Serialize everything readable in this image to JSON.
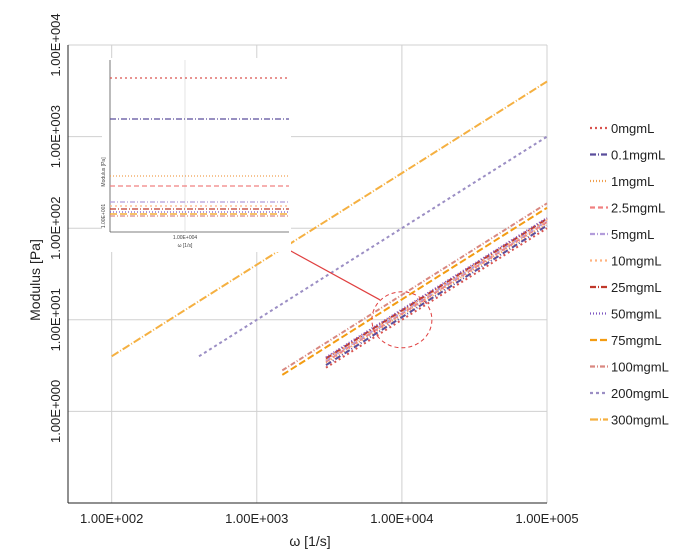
{
  "chart_data": {
    "type": "line",
    "title": "",
    "xlabel": "ω [1/s]",
    "ylabel": "Modulus [Pa]",
    "xscale": "log",
    "yscale": "log",
    "xlim": [
      50,
      100000
    ],
    "ylim": [
      0.1,
      10000
    ],
    "x_ticks": [
      100,
      1000,
      10000,
      100000
    ],
    "x_tick_labels": [
      "1.00E+002",
      "1.00E+003",
      "1.00E+004",
      "1.00E+005"
    ],
    "y_ticks": [
      1,
      10,
      100,
      1000,
      10000
    ],
    "y_tick_labels": [
      "1.00E+000",
      "1.00E+001",
      "1.00E+002",
      "1.00E+003",
      "1.00E+004"
    ],
    "grid": true,
    "legend_position": "right",
    "series": [
      {
        "name": "0mgmL",
        "color": "#d9534f",
        "dash": "2,3",
        "x": [
          3000,
          100000
        ],
        "y": [
          3.0,
          100
        ]
      },
      {
        "name": "0.1mgmL",
        "color": "#5a4e9c",
        "dash": "6,2,1,2",
        "x": [
          3000,
          100000
        ],
        "y": [
          3.2,
          107
        ]
      },
      {
        "name": "1mgmL",
        "color": "#f0a050",
        "dash": "1,2",
        "x": [
          3000,
          100000
        ],
        "y": [
          3.4,
          113
        ]
      },
      {
        "name": "2.5mgmL",
        "color": "#f08080",
        "dash": "5,3",
        "x": [
          3000,
          100000
        ],
        "y": [
          3.5,
          117
        ]
      },
      {
        "name": "5mgmL",
        "color": "#b39ddb",
        "dash": "5,2,1,2",
        "x": [
          3000,
          100000
        ],
        "y": [
          3.6,
          120
        ]
      },
      {
        "name": "10mgmL",
        "color": "#ffb380",
        "dash": "2,3",
        "x": [
          3000,
          100000
        ],
        "y": [
          3.7,
          123
        ]
      },
      {
        "name": "25mgmL",
        "color": "#c0392b",
        "dash": "6,2,1,2",
        "x": [
          3000,
          100000
        ],
        "y": [
          3.8,
          127
        ]
      },
      {
        "name": "50mgmL",
        "color": "#7e57c2",
        "dash": "1,2",
        "x": [
          3000,
          100000
        ],
        "y": [
          3.9,
          130
        ]
      },
      {
        "name": "75mgmL",
        "color": "#f39c12",
        "dash": "7,3",
        "x": [
          1500,
          100000
        ],
        "y": [
          2.5,
          167
        ]
      },
      {
        "name": "100mgmL",
        "color": "#d98880",
        "dash": "5,2,1,2",
        "x": [
          1500,
          100000
        ],
        "y": [
          2.8,
          187
        ]
      },
      {
        "name": "200mgmL",
        "color": "#9b8ec4",
        "dash": "3,3",
        "x": [
          400,
          100000
        ],
        "y": [
          4.0,
          1000
        ]
      },
      {
        "name": "300mgmL",
        "color": "#f5b041",
        "dash": "8,2,1,2",
        "x": [
          100,
          100000
        ],
        "y": [
          4.0,
          4000
        ]
      }
    ],
    "inset": {
      "ylabel": "Modulus [Pa]",
      "xlabel": "ω [1/s]",
      "x_tick_label": "1.00E+004",
      "y_tick_label": "1.00E+001"
    }
  }
}
